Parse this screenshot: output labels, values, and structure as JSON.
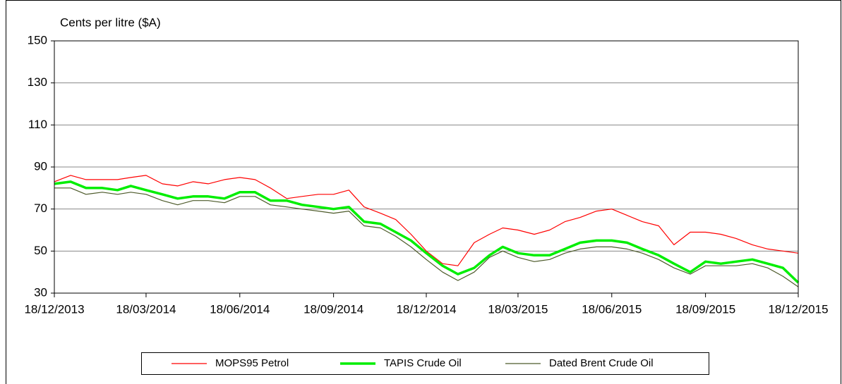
{
  "chart_data": {
    "type": "line",
    "y_label": "Cents per litre ($A)",
    "x": [
      "18/12/2013",
      "03/01/2014",
      "18/01/2014",
      "03/02/2014",
      "18/02/2014",
      "03/03/2014",
      "18/03/2014",
      "03/04/2014",
      "18/04/2014",
      "03/05/2014",
      "18/05/2014",
      "03/06/2014",
      "18/06/2014",
      "03/07/2014",
      "18/07/2014",
      "03/08/2014",
      "18/08/2014",
      "03/09/2014",
      "18/09/2014",
      "03/10/2014",
      "18/10/2014",
      "03/11/2014",
      "18/11/2014",
      "03/12/2014",
      "18/12/2014",
      "03/01/2015",
      "18/01/2015",
      "03/02/2015",
      "18/02/2015",
      "03/03/2015",
      "18/03/2015",
      "03/04/2015",
      "18/04/2015",
      "03/05/2015",
      "18/05/2015",
      "03/06/2015",
      "18/06/2015",
      "03/07/2015",
      "18/07/2015",
      "03/08/2015",
      "18/08/2015",
      "03/09/2015",
      "18/09/2015",
      "03/10/2015",
      "18/10/2015",
      "03/11/2015",
      "18/11/2015",
      "03/12/2015",
      "18/12/2015"
    ],
    "series": [
      {
        "name": "MOPS95 Petrol",
        "color": "#ff0000",
        "width": 1.2,
        "values": [
          83,
          86,
          84,
          84,
          84,
          85,
          86,
          82,
          81,
          83,
          82,
          84,
          85,
          84,
          80,
          75,
          76,
          77,
          77,
          79,
          71,
          68,
          65,
          58,
          50,
          44,
          43,
          54,
          58,
          61,
          60,
          58,
          60,
          64,
          66,
          69,
          70,
          67,
          64,
          62,
          53,
          59,
          59,
          58,
          56,
          53,
          51,
          50,
          49
        ]
      },
      {
        "name": "TAPIS Crude Oil",
        "color": "#00ee00",
        "width": 3.5,
        "values": [
          82,
          83,
          80,
          80,
          79,
          81,
          79,
          77,
          75,
          76,
          76,
          75,
          78,
          78,
          74,
          74,
          72,
          71,
          70,
          71,
          64,
          63,
          59,
          55,
          49,
          43,
          39,
          42,
          48,
          52,
          49,
          48,
          48,
          51,
          54,
          55,
          55,
          54,
          51,
          48,
          44,
          40,
          45,
          44,
          45,
          46,
          44,
          42,
          35
        ]
      },
      {
        "name": "Dated Brent Crude Oil",
        "color": "#4d5a2a",
        "width": 1.2,
        "values": [
          80,
          80,
          77,
          78,
          77,
          78,
          77,
          74,
          72,
          74,
          74,
          73,
          76,
          76,
          72,
          71,
          70,
          69,
          68,
          69,
          62,
          61,
          57,
          52,
          46,
          40,
          36,
          40,
          47,
          50,
          47,
          45,
          46,
          49,
          51,
          52,
          52,
          51,
          49,
          46,
          42,
          39,
          43,
          43,
          43,
          44,
          42,
          38,
          33
        ]
      }
    ],
    "xlim": [
      "18/12/2013",
      "18/12/2015"
    ],
    "xticks": [
      "18/12/2013",
      "18/03/2014",
      "18/06/2014",
      "18/09/2014",
      "18/12/2014",
      "18/03/2015",
      "18/06/2015",
      "18/09/2015",
      "18/12/2015"
    ],
    "ylim": [
      30,
      150
    ],
    "yticks": [
      30,
      50,
      70,
      90,
      110,
      130,
      150
    ],
    "grid": true,
    "legend": "bottom"
  }
}
